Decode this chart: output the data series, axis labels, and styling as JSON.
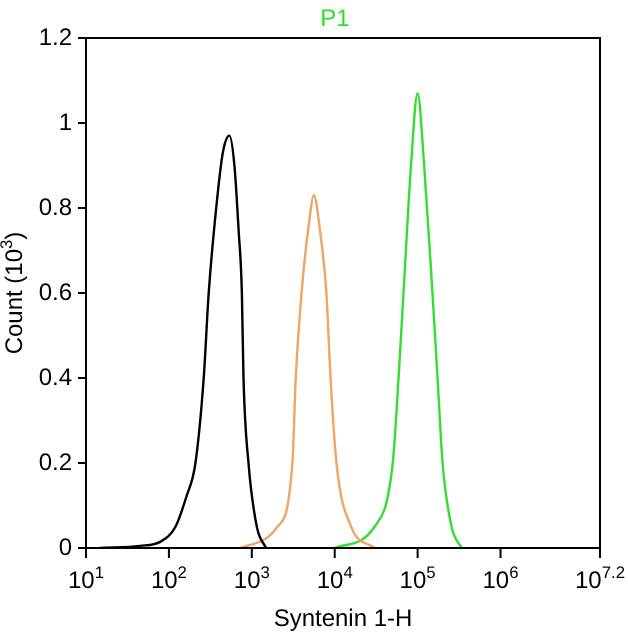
{
  "chart_data": {
    "type": "line",
    "xlabel": "Syntenin 1-H",
    "ylabel": "Count (10$^{3}$)",
    "log": "x",
    "grid": false,
    "legend": "top",
    "marker": "none",
    "line_style": "solid",
    "xlim": [
      10,
      15848931.92
    ],
    "ylim": [
      0,
      1.2
    ],
    "xticks": [
      {
        "value": 10,
        "label": "10$^{1}$"
      },
      {
        "value": 100,
        "label": "10$^{2}$"
      },
      {
        "value": 1000,
        "label": "10$^{3}$"
      },
      {
        "value": 10000,
        "label": "10$^{4}$"
      },
      {
        "value": 100000,
        "label": "10$^{5}$"
      },
      {
        "value": 1000000,
        "label": "10$^{6}$"
      },
      {
        "value": 15848931.92,
        "label": "10$^{7.2}$"
      }
    ],
    "yticks": [
      0,
      0.2,
      0.4,
      0.6,
      0.8,
      1,
      1.2
    ],
    "series": [
      {
        "color": "#000000",
        "x": [
          14.8,
          44.7,
          79.4,
          120,
          162,
          209,
          263,
          302,
          372,
          447,
          537,
          617,
          692,
          759,
          794,
          912,
          1150,
          1480
        ],
        "values": [
          0,
          0.005,
          0.015,
          0.05,
          0.12,
          0.2,
          0.4,
          0.6,
          0.8,
          0.93,
          0.97,
          0.9,
          0.75,
          0.6,
          0.4,
          0.2,
          0.05,
          0
        ]
      },
      {
        "color": "#f0a468",
        "x": [
          724,
          2040,
          3090,
          3390,
          3980,
          4790,
          5620,
          6610,
          7940,
          8910,
          10500,
          15800,
          30200
        ],
        "values": [
          0,
          0.05,
          0.2,
          0.4,
          0.6,
          0.75,
          0.83,
          0.75,
          0.6,
          0.4,
          0.2,
          0.05,
          0
        ]
      },
      {
        "name": "P1",
        "color": "#33dd33",
        "x": [
          10000,
          30200,
          50100,
          58900,
          67600,
          83200,
          100000,
          120000,
          151000,
          174000,
          200000,
          257000,
          339000
        ],
        "values": [
          0,
          0.05,
          0.2,
          0.4,
          0.6,
          0.9,
          1.07,
          0.9,
          0.6,
          0.4,
          0.2,
          0.05,
          0
        ]
      }
    ]
  }
}
